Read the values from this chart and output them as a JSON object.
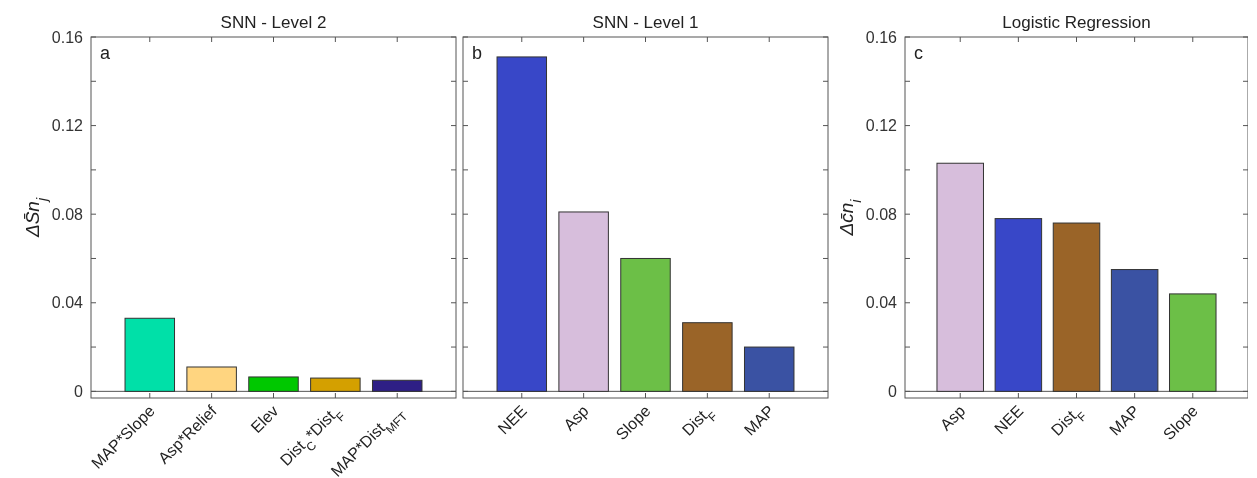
{
  "chart_data": [
    {
      "type": "bar",
      "title": "SNN - Level 2",
      "ylabel": "ΔS̄n$_{j}$",
      "annotations": [
        "a"
      ],
      "categories": [
        "MAP*Slope",
        "Asp*Relief",
        "Elev",
        "Dist$_{C}$*Dist$_{F}$",
        "MAP*Dist$_{MFT}$"
      ],
      "values": [
        0.033,
        0.011,
        0.0065,
        0.006,
        0.005
      ],
      "colors": [
        "#00e0a8",
        "#ffd580",
        "#00c800",
        "#d4a000",
        "#2e1f85"
      ],
      "ylim": [
        -0.003,
        0.16
      ],
      "yticks": [
        0,
        {
          "value": 0.02,
          "label": null
        },
        0.04,
        {
          "value": 0.06,
          "label": null
        },
        0.08,
        {
          "value": 0.1,
          "label": null
        },
        0.12,
        {
          "value": 0.14,
          "label": null
        },
        0.16
      ],
      "ref_lines": [
        {
          "axis": "y",
          "value": 0
        }
      ]
    },
    {
      "type": "bar",
      "title": "SNN - Level 1",
      "annotations": [
        "b"
      ],
      "categories": [
        "NEE",
        "Asp",
        "Slope",
        "Dist$_{F}$",
        "MAP"
      ],
      "values": [
        0.151,
        0.081,
        0.06,
        0.031,
        0.02
      ],
      "colors": [
        "#3847c8",
        "#d7bedc",
        "#6cbf47",
        "#9a6428",
        "#3a52a3"
      ],
      "ylim": [
        -0.003,
        0.16
      ],
      "yticks": [
        0,
        {
          "value": 0.02,
          "label": null
        },
        0.04,
        {
          "value": 0.06,
          "label": null
        },
        0.08,
        {
          "value": 0.1,
          "label": null
        },
        0.12,
        {
          "value": 0.14,
          "label": null
        },
        0.16
      ],
      "tick_labels": "x",
      "ref_lines": [
        {
          "axis": "y",
          "value": 0
        }
      ]
    },
    {
      "type": "bar",
      "title": "Logistic Regression",
      "ylabel": "Δc̄n$_{i}$",
      "annotations": [
        "c"
      ],
      "categories": [
        "Asp",
        "NEE",
        "Dist$_{F}$",
        "MAP",
        "Slope"
      ],
      "values": [
        0.103,
        0.078,
        0.076,
        0.055,
        0.044
      ],
      "colors": [
        "#d7bedc",
        "#3847c8",
        "#9a6428",
        "#3a52a3",
        "#6cbf47"
      ],
      "ylim": [
        -0.003,
        0.16
      ],
      "yticks": [
        0,
        {
          "value": 0.02,
          "label": null
        },
        0.04,
        {
          "value": 0.06,
          "label": null
        },
        0.08,
        {
          "value": 0.1,
          "label": null
        },
        0.12,
        {
          "value": 0.14,
          "label": null
        },
        0.16
      ],
      "ref_lines": [
        {
          "axis": "y",
          "value": 0
        }
      ]
    }
  ]
}
